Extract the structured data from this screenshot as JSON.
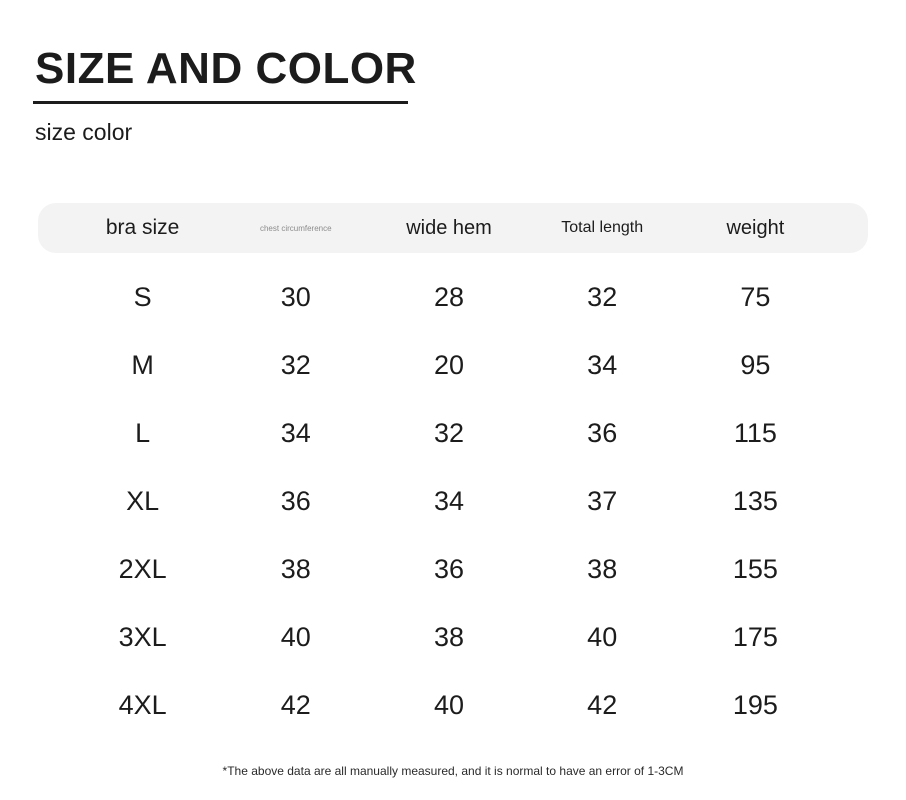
{
  "header": {
    "title": "SIZE AND COLOR",
    "subtitle": "size color"
  },
  "footnote": "*The above data are all manually measured, and it is normal to have an error of 1-3CM",
  "colors": {
    "background": "#ffffff",
    "text": "#1c1c1c",
    "header_band": "#f3f3f3",
    "muted_header_text": "#8c8c8c"
  },
  "chart_data": {
    "type": "table",
    "title": "SIZE AND COLOR",
    "columns": [
      "bra size",
      "chest circumference",
      "wide hem",
      "Total length",
      "weight"
    ],
    "rows": [
      [
        "S",
        "30",
        "28",
        "32",
        "75"
      ],
      [
        "M",
        "32",
        "20",
        "34",
        "95"
      ],
      [
        "L",
        "34",
        "32",
        "36",
        "115"
      ],
      [
        "XL",
        "36",
        "34",
        "37",
        "135"
      ],
      [
        "2XL",
        "38",
        "36",
        "38",
        "155"
      ],
      [
        "3XL",
        "40",
        "38",
        "40",
        "175"
      ],
      [
        "4XL",
        "42",
        "40",
        "42",
        "195"
      ]
    ]
  }
}
